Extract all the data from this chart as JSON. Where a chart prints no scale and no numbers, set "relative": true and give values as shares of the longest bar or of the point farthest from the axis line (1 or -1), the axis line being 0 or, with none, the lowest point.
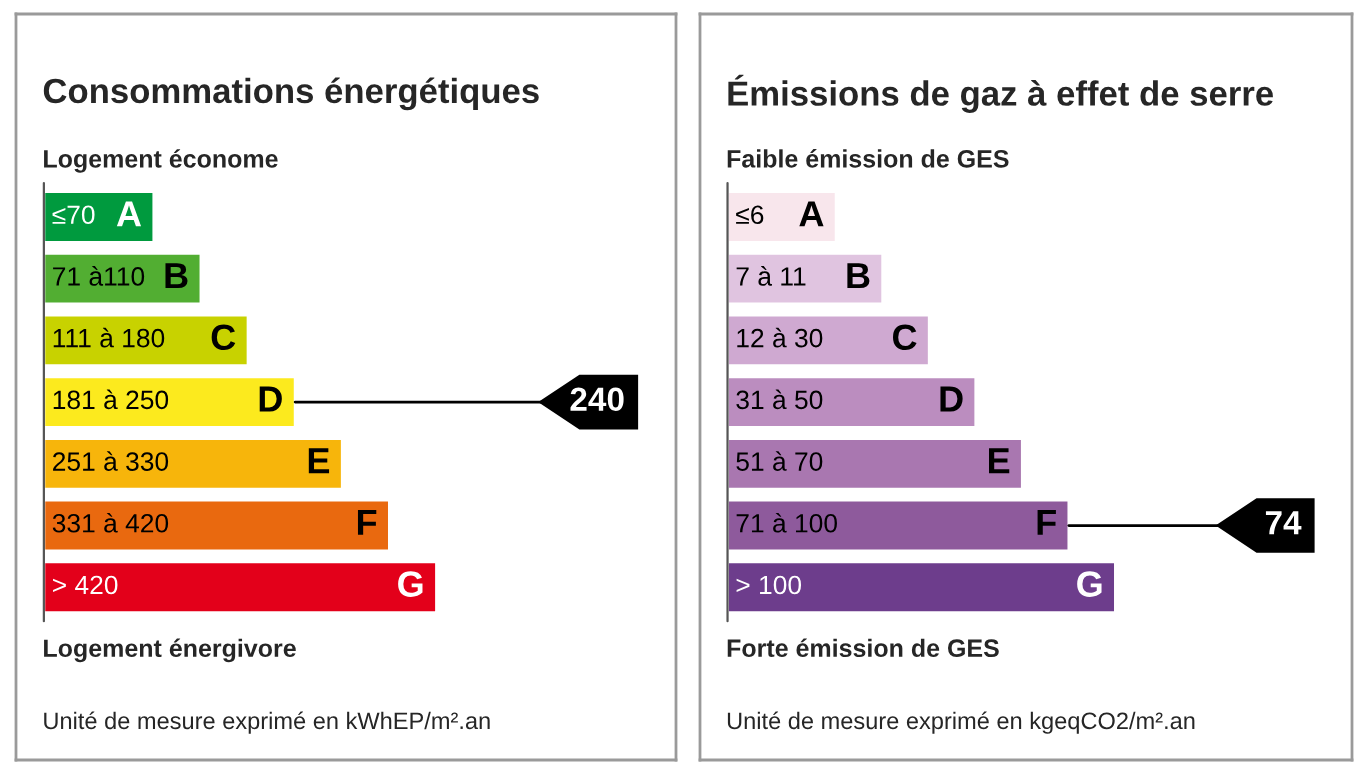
{
  "chart_data": [
    {
      "type": "bar",
      "orientation": "horizontal",
      "relative": true,
      "title": "Consommations énergétiques",
      "categories": [
        "≤70 A",
        "71 à110 B",
        "111 à 180 C",
        "181 à 250 D",
        "251 à 330 E",
        "331 à 420 F",
        "> 420 G"
      ],
      "values": [
        0.28,
        0.4,
        0.52,
        0.64,
        0.76,
        0.88,
        1.0
      ],
      "colors": [
        "#009a3e",
        "#52ae32",
        "#c8d200",
        "#fcea1e",
        "#f7b50b",
        "#e9690f",
        "#e3001a"
      ],
      "annotations": [
        "Logement économe",
        "Logement énergivore",
        "Unité de mesure exprimé en kWhEP/m².an",
        {
          "text": "240",
          "x": 0.64,
          "y": "181 à 250 D"
        }
      ]
    },
    {
      "type": "bar",
      "orientation": "horizontal",
      "relative": true,
      "title": "Émissions de gaz à effet de serre",
      "categories": [
        "≤6 A",
        "7 à 11 B",
        "12 à 30 C",
        "31 à 50 D",
        "51 à 70 E",
        "71 à 100 F",
        "> 100 G"
      ],
      "values": [
        0.28,
        0.4,
        0.52,
        0.64,
        0.76,
        0.88,
        1.0
      ],
      "colors": [
        "#f8e6ec",
        "#e0c4e0",
        "#cfa9d1",
        "#bb8dbf",
        "#a977b0",
        "#8e5a9c",
        "#6d3d8c"
      ],
      "annotations": [
        "Faible émission de GES",
        "Forte émission de GES",
        "Unité de mesure exprimé en kgeqCO2/m².an",
        {
          "text": "74",
          "x": 0.88,
          "y": "71 à 100 F"
        }
      ]
    }
  ]
}
